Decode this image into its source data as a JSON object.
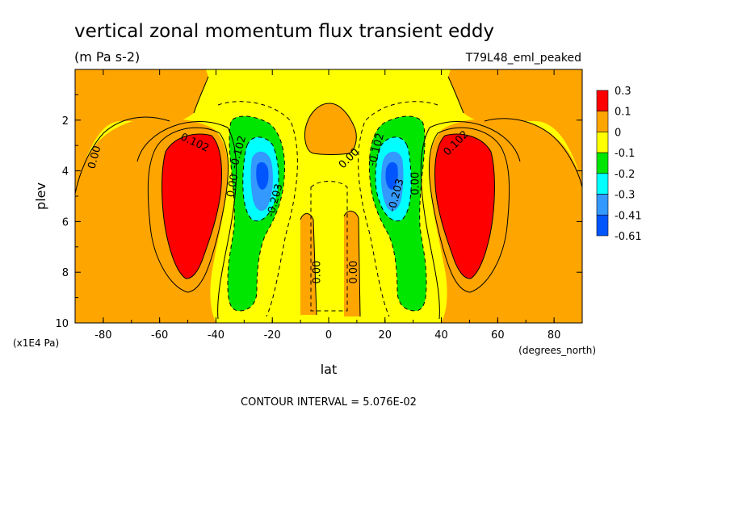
{
  "title": "vertical zonal momentum flux transient eddy",
  "units": "(m Pa s-2)",
  "dataset": "T79L48_eml_peaked",
  "footer": "CONTOUR INTERVAL = 5.076E-02",
  "colors": {
    "red": "#ff0000",
    "orange": "#ffa500",
    "yellow": "#ffff00",
    "green": "#00e600",
    "cyan": "#00ffff",
    "lightblue": "#3399ff",
    "blue": "#0055ff"
  },
  "chart_data": {
    "type": "heatmap",
    "title": "vertical zonal momentum flux transient eddy",
    "subtitle": "(m Pa s-2)",
    "xlabel": "lat",
    "x_units": "(degrees_north)",
    "ylabel": "plev",
    "y_units": "(x1E4 Pa)",
    "xlim": [
      -90,
      90
    ],
    "ylim": [
      10,
      0
    ],
    "xticks": [
      -80,
      -60,
      -40,
      -20,
      0,
      20,
      40,
      60,
      80
    ],
    "yticks": [
      2,
      4,
      6,
      8,
      10
    ],
    "colorbar": {
      "levels": [
        "0.3",
        "0.1",
        "0",
        "-0.1",
        "-0.2",
        "-0.3",
        "-0.41",
        "-0.61"
      ],
      "colors": [
        "#ff0000",
        "#ffa500",
        "#ffff00",
        "#00e600",
        "#00ffff",
        "#3399ff",
        "#0055ff"
      ]
    },
    "contour_labels": [
      {
        "text": "0.102",
        "lat": -48,
        "plev": 3.0,
        "rot": 25
      },
      {
        "text": "0.00",
        "lat": -82,
        "plev": 3.5,
        "rot": -75
      },
      {
        "text": "0.00",
        "lat": -33,
        "plev": 4.6,
        "rot": -80
      },
      {
        "text": "-0.102",
        "lat": -31,
        "plev": 3.3,
        "rot": -75
      },
      {
        "text": "-0.203",
        "lat": -18,
        "plev": 5.2,
        "rot": -75
      },
      {
        "text": "0.00",
        "lat": 8,
        "plev": 3.6,
        "rot": -45
      },
      {
        "text": "0.00",
        "lat": -3,
        "plev": 8.0,
        "rot": -90
      },
      {
        "text": "0.00",
        "lat": 10,
        "plev": 8.0,
        "rot": -90
      },
      {
        "text": "-0.102",
        "lat": 18,
        "plev": 3.2,
        "rot": -75
      },
      {
        "text": "-0.203",
        "lat": 25,
        "plev": 5.0,
        "rot": -75
      },
      {
        "text": "0.00",
        "lat": 32,
        "plev": 4.5,
        "rot": -90
      },
      {
        "text": "0.102",
        "lat": 46,
        "plev": 3.0,
        "rot": -45
      }
    ]
  }
}
